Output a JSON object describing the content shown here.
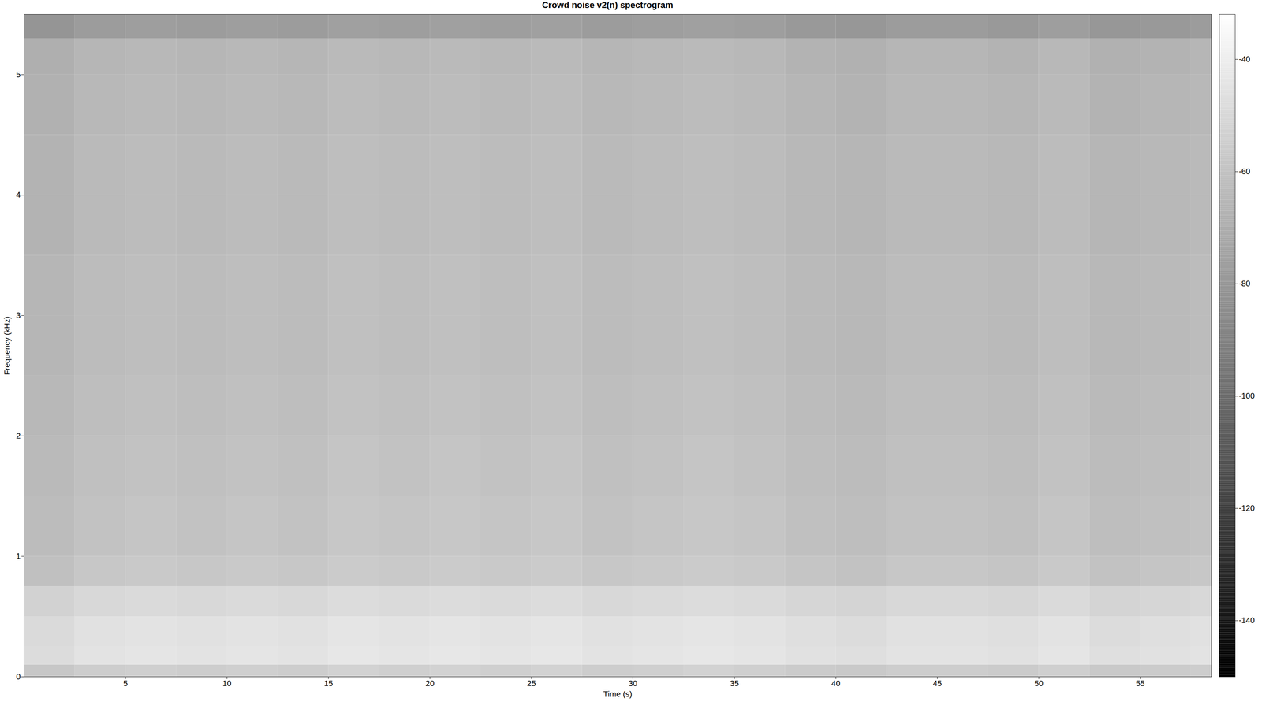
{
  "chart_data": {
    "type": "heatmap",
    "title": "Crowd noise v2(n) spectrogram",
    "x_label": "Time (s)",
    "y_label": "Frequency (kHz)",
    "xlim": [
      0,
      58.5
    ],
    "xticks": [
      5,
      10,
      15,
      20,
      25,
      30,
      35,
      40,
      45,
      50,
      55
    ],
    "ylim": [
      0,
      5.5
    ],
    "yticks": [
      0,
      1,
      2,
      3,
      4,
      5
    ],
    "color": "gray",
    "x_edges": [
      0,
      2.5,
      5,
      7.5,
      10,
      12.5,
      15,
      17.5,
      20,
      22.5,
      25,
      27.5,
      30,
      32.5,
      35,
      37.5,
      40,
      42.5,
      45,
      47.5,
      50,
      52.5,
      55,
      57.5,
      58.5
    ],
    "y_edges": [
      0,
      0.1,
      0.25,
      0.5,
      0.75,
      1,
      1.5,
      2,
      2.5,
      3,
      3.5,
      4,
      4.5,
      5,
      5.3,
      5.5
    ],
    "values": [
      [
        -58,
        -55,
        -54,
        -55,
        -54,
        -55,
        -53,
        -54,
        -53,
        -54,
        -53,
        -55,
        -54,
        -53,
        -54,
        -56,
        -57,
        -55,
        -55,
        -56,
        -54,
        -57,
        -56,
        -55
      ],
      [
        -48,
        -45,
        -44,
        -45,
        -44,
        -45,
        -43,
        -44,
        -43,
        -44,
        -43,
        -45,
        -44,
        -43,
        -44,
        -46,
        -47,
        -45,
        -45,
        -46,
        -44,
        -47,
        -46,
        -45
      ],
      [
        -49,
        -46,
        -45,
        -46,
        -45,
        -46,
        -44,
        -45,
        -44,
        -45,
        -44,
        -46,
        -45,
        -44,
        -45,
        -47,
        -48,
        -46,
        -46,
        -47,
        -45,
        -48,
        -47,
        -46
      ],
      [
        -53,
        -50,
        -49,
        -50,
        -49,
        -50,
        -48,
        -49,
        -48,
        -49,
        -48,
        -50,
        -49,
        -48,
        -49,
        -51,
        -52,
        -50,
        -50,
        -51,
        -49,
        -52,
        -51,
        -50
      ],
      [
        -61,
        -58,
        -57,
        -58,
        -57,
        -58,
        -56,
        -57,
        -56,
        -57,
        -56,
        -58,
        -57,
        -56,
        -57,
        -59,
        -60,
        -58,
        -58,
        -59,
        -57,
        -60,
        -59,
        -58
      ],
      [
        -63,
        -60,
        -59,
        -60,
        -59,
        -60,
        -58,
        -59,
        -58,
        -59,
        -58,
        -60,
        -59,
        -58,
        -59,
        -61,
        -62,
        -60,
        -60,
        -61,
        -59,
        -62,
        -61,
        -60
      ],
      [
        -64,
        -61,
        -60,
        -61,
        -60,
        -61,
        -59,
        -60,
        -59,
        -60,
        -59,
        -61,
        -60,
        -59,
        -60,
        -62,
        -63,
        -61,
        -61,
        -62,
        -60,
        -63,
        -62,
        -61
      ],
      [
        -65,
        -62,
        -61,
        -62,
        -61,
        -62,
        -60,
        -61,
        -60,
        -61,
        -60,
        -62,
        -61,
        -60,
        -61,
        -63,
        -64,
        -62,
        -62,
        -63,
        -61,
        -64,
        -63,
        -62
      ],
      [
        -66,
        -63,
        -62,
        -63,
        -62,
        -63,
        -61,
        -62,
        -61,
        -62,
        -61,
        -63,
        -62,
        -61,
        -62,
        -64,
        -65,
        -63,
        -63,
        -64,
        -62,
        -65,
        -64,
        -63
      ],
      [
        -66,
        -63,
        -62,
        -63,
        -62,
        -63,
        -61,
        -62,
        -61,
        -62,
        -61,
        -63,
        -62,
        -61,
        -62,
        -64,
        -65,
        -63,
        -63,
        -64,
        -62,
        -65,
        -64,
        -63
      ],
      [
        -67,
        -64,
        -63,
        -64,
        -63,
        -64,
        -62,
        -63,
        -62,
        -63,
        -62,
        -64,
        -63,
        -62,
        -63,
        -65,
        -66,
        -64,
        -64,
        -65,
        -63,
        -66,
        -65,
        -64
      ],
      [
        -67,
        -64,
        -63,
        -64,
        -63,
        -64,
        -62,
        -63,
        -62,
        -63,
        -62,
        -64,
        -63,
        -62,
        -63,
        -65,
        -66,
        -64,
        -64,
        -65,
        -63,
        -66,
        -65,
        -64
      ],
      [
        -68,
        -65,
        -64,
        -65,
        -64,
        -65,
        -63,
        -64,
        -63,
        -64,
        -63,
        -65,
        -64,
        -63,
        -64,
        -66,
        -67,
        -65,
        -65,
        -66,
        -64,
        -67,
        -66,
        -65
      ],
      [
        -69,
        -66,
        -65,
        -66,
        -65,
        -66,
        -64,
        -65,
        -64,
        -65,
        -64,
        -66,
        -65,
        -64,
        -65,
        -67,
        -68,
        -66,
        -66,
        -67,
        -65,
        -68,
        -67,
        -66
      ],
      [
        -81,
        -78,
        -77,
        -78,
        -77,
        -78,
        -76,
        -77,
        -76,
        -77,
        -76,
        -78,
        -77,
        -76,
        -77,
        -79,
        -80,
        -78,
        -78,
        -79,
        -77,
        -80,
        -79,
        -78
      ]
    ],
    "colorbar": {
      "range": [
        -150,
        -32
      ],
      "ticks": [
        -40,
        -60,
        -80,
        -100,
        -120,
        -140
      ]
    }
  }
}
